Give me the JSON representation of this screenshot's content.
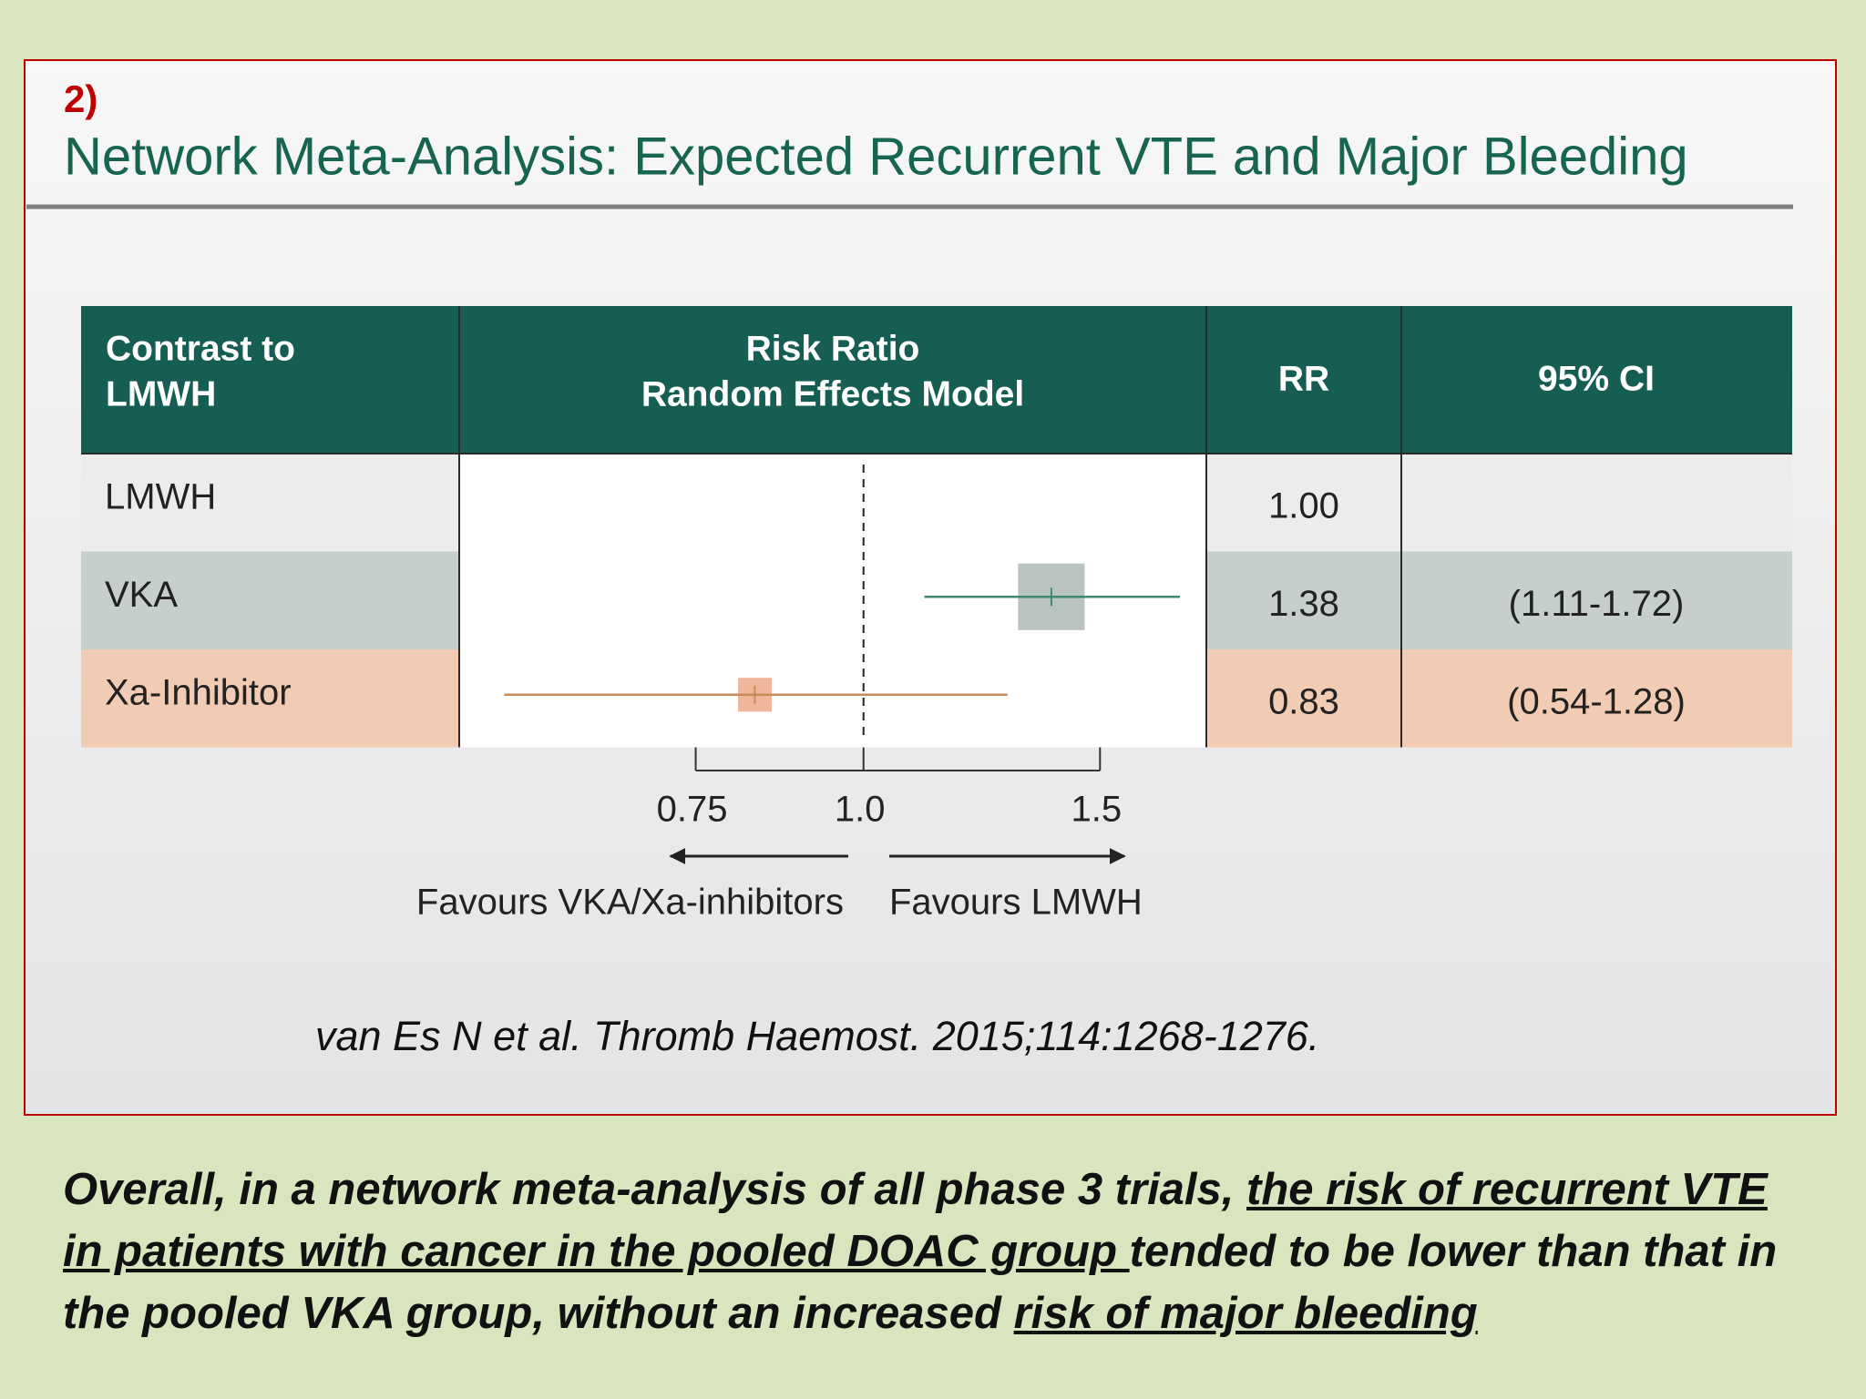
{
  "slide": {
    "label": "2)",
    "title": "Network Meta-Analysis: Expected Recurrent VTE and Major Bleeding",
    "citation": "van Es N et al. Thromb Haemost. 2015;114:1268-1276.",
    "summary": [
      "Overall, in a network meta-analysis of all phase 3 trials, ",
      "the risk of recurrent VTE in patients with cancer in the pooled DOAC group ",
      "tended to be lower than that in the pooled VKA group, without an increased ",
      "risk of major bleeding"
    ]
  },
  "chart_data": {
    "type": "forest",
    "columns": {
      "contrast": [
        "Contrast to",
        "LMWH"
      ],
      "plot": [
        "Risk Ratio",
        "Random Effects Model"
      ],
      "rr": "RR",
      "ci": "95% CI"
    },
    "categories": [
      "LMWH",
      "VKA",
      "Xa-Inhibitor"
    ],
    "values": [
      1,
      1.38,
      0.83
    ],
    "value_labels": [
      "1.00",
      "1.38",
      "0.83"
    ],
    "ci_low": [
      null,
      1.11,
      0.54
    ],
    "ci_high": [
      null,
      1.72,
      1.28
    ],
    "ci_labels": [
      null,
      "(1.11-1.72)",
      "(0.54-1.28)"
    ],
    "row_colors": [
      "#ececec",
      "#c6cfcc",
      "#f1cbb4"
    ],
    "line_colors": [
      null,
      "#3f8a6f",
      "#c98a5c"
    ],
    "box_colors": [
      null,
      "#b9c3c0",
      "#f0b69a"
    ],
    "xlim": [
      0.5,
      1.8
    ],
    "xscale": "log",
    "xticks": [
      0.75,
      {
        "value": 1,
        "label": "1.0"
      },
      1.5
    ],
    "direction_labels": [
      "Favours VKA/Xa-inhibitors",
      "Favours LMWH"
    ]
  }
}
